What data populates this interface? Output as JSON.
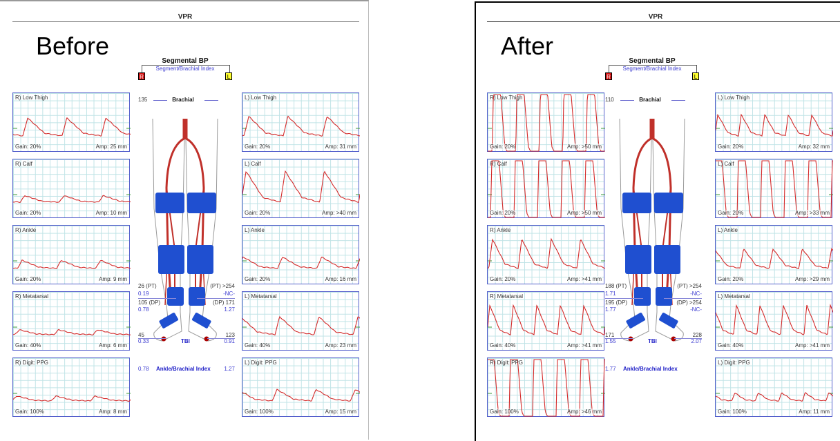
{
  "colors": {
    "trace": "#d42a2a",
    "border": "#5560cc",
    "grid": "#bfe3e6",
    "index_text": "#3a3ad0",
    "cuff": "#1f4fd0",
    "artery": "#c0302a"
  },
  "panels": [
    {
      "label": "Before",
      "header": "VPR",
      "segmental_title": "Segmental BP",
      "segmental_subtitle": "Segment/Brachial Index",
      "right_badge": "R",
      "left_badge": "L",
      "brachial_value": "135",
      "brachial_label": "Brachial",
      "right": {
        "pt": "26 (PT)",
        "pt_index": "0.19",
        "dp": "105 (DP)",
        "dp_index": "0.78",
        "toe": "45",
        "toe_index": "0.33",
        "abi": "0.78"
      },
      "left": {
        "pt": "(PT) >254",
        "pt_index": "-NC-",
        "dp": "(DP) 171",
        "dp_index": "1.27",
        "toe": "123",
        "toe_index": "0.91",
        "abi": "1.27"
      },
      "tbi_label": "TBI",
      "abi_label": "Ankle/Brachial Index",
      "traces_right": [
        {
          "label": "R) Low Thigh",
          "gain": "Gain: 20%",
          "amp": "Amp: 25 mm",
          "peaks": 3,
          "level": 0.55,
          "clipped": false
        },
        {
          "label": "R) Calf",
          "gain": "Gain: 20%",
          "amp": "Amp: 10 mm",
          "peaks": 3,
          "level": 0.2,
          "clipped": false
        },
        {
          "label": "R) Ankle",
          "gain": "Gain: 20%",
          "amp": "Amp: 9 mm",
          "peaks": 3,
          "level": 0.25,
          "clipped": false
        },
        {
          "label": "R) Metatarsal",
          "gain": "Gain: 40%",
          "amp": "Amp: 6 mm",
          "peaks": 3,
          "level": 0.15,
          "clipped": false
        },
        {
          "label": "R) Digit: PPG",
          "gain": "Gain: 100%",
          "amp": "Amp: 8 mm",
          "peaks": 3,
          "level": 0.15,
          "clipped": false
        }
      ],
      "traces_left": [
        {
          "label": "L) Low Thigh",
          "gain": "Gain: 20%",
          "amp": "Amp: 31 mm",
          "peaks": 3,
          "level": 0.6,
          "clipped": false
        },
        {
          "label": "L) Calf",
          "gain": "Gain: 20%",
          "amp": "Amp: >40 mm",
          "peaks": 3,
          "level": 0.95,
          "clipped": true
        },
        {
          "label": "L) Ankle",
          "gain": "Gain: 20%",
          "amp": "Amp: 16 mm",
          "peaks": 3,
          "level": 0.35,
          "clipped": false
        },
        {
          "label": "L) Metatarsal",
          "gain": "Gain: 40%",
          "amp": "Amp: 23 mm",
          "peaks": 3,
          "level": 0.55,
          "clipped": false
        },
        {
          "label": "L) Digit: PPG",
          "gain": "Gain: 100%",
          "amp": "Amp: 15 mm",
          "peaks": 3,
          "level": 0.35,
          "clipped": false
        }
      ]
    },
    {
      "label": "After",
      "header": "VPR",
      "segmental_title": "Segmental BP",
      "segmental_subtitle": "Segment/Brachial Index",
      "right_badge": "R",
      "left_badge": "L",
      "brachial_value": "110",
      "brachial_label": "Brachial",
      "right": {
        "pt": "188 (PT)",
        "pt_index": "1.71",
        "dp": "195 (DP)",
        "dp_index": "1.77",
        "toe": "171",
        "toe_index": "1.55",
        "abi": "1.77"
      },
      "left": {
        "pt": "(PT) >254",
        "pt_index": "-NC-",
        "dp": "(DP) >254",
        "dp_index": "-NC-",
        "toe": "228",
        "toe_index": "2.07",
        "abi": ""
      },
      "tbi_label": "TBI",
      "abi_label": "Ankle/Brachial Index",
      "traces_right": [
        {
          "label": "R) Low Thigh",
          "gain": "Gain: 20%",
          "amp": "Amp: >50 mm",
          "peaks": 5,
          "level": 1.3,
          "clipped": true
        },
        {
          "label": "R) Calf",
          "gain": "Gain: 20%",
          "amp": "Amp: >50 mm",
          "peaks": 5,
          "level": 1.3,
          "clipped": true
        },
        {
          "label": "R) Ankle",
          "gain": "Gain: 20%",
          "amp": "Amp: >41 mm",
          "peaks": 4,
          "level": 0.9,
          "clipped": true
        },
        {
          "label": "R) Metatarsal",
          "gain": "Gain: 40%",
          "amp": "Amp: >41 mm",
          "peaks": 5,
          "level": 0.9,
          "clipped": true
        },
        {
          "label": "R) Digit: PPG",
          "gain": "Gain: 100%",
          "amp": "Amp: >46 mm",
          "peaks": 5,
          "level": 1.1,
          "clipped": true
        }
      ],
      "traces_left": [
        {
          "label": "L) Low Thigh",
          "gain": "Gain: 20%",
          "amp": "Amp: 32 mm",
          "peaks": 5,
          "level": 0.65,
          "clipped": false
        },
        {
          "label": "L) Calf",
          "gain": "Gain: 20%",
          "amp": "Amp: >33 mm",
          "peaks": 5,
          "level": 1.1,
          "clipped": true
        },
        {
          "label": "L) Ankle",
          "gain": "Gain: 20%",
          "amp": "Amp: >29 mm",
          "peaks": 4,
          "level": 0.6,
          "clipped": true
        },
        {
          "label": "L) Metatarsal",
          "gain": "Gain: 40%",
          "amp": "Amp: >41 mm",
          "peaks": 5,
          "level": 0.9,
          "clipped": true
        },
        {
          "label": "L) Digit: PPG",
          "gain": "Gain: 100%",
          "amp": "Amp: 11 mm",
          "peaks": 5,
          "level": 0.25,
          "clipped": false
        }
      ]
    }
  ]
}
